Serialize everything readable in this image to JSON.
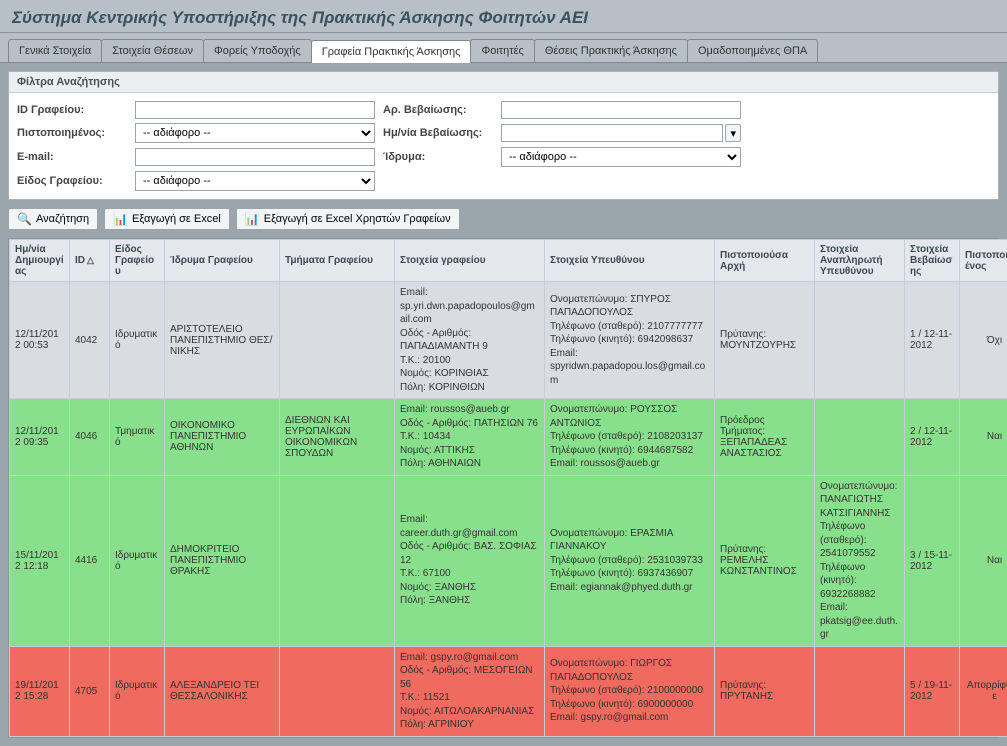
{
  "header": {
    "title": "Σύστημα Κεντρικής Υποστήριξης της Πρακτικής Άσκησης Φοιτητών ΑΕΙ"
  },
  "tabs": {
    "items": [
      {
        "label": "Γενικά Στοιχεία"
      },
      {
        "label": "Στοιχεία Θέσεων"
      },
      {
        "label": "Φορείς Υποδοχής"
      },
      {
        "label": "Γραφεία Πρακτικής Άσκησης",
        "active": true
      },
      {
        "label": "Φοιτητές"
      },
      {
        "label": "Θέσεις Πρακτικής Άσκησης"
      },
      {
        "label": "Ομαδοποιημένες ΘΠΑ"
      }
    ]
  },
  "filters": {
    "panel_title": "Φίλτρα Αναζήτησης",
    "id_label": "ID Γραφείου:",
    "id_value": "",
    "certno_label": "Αρ. Βεβαίωσης:",
    "certno_value": "",
    "certified_label": "Πιστοποιημένος:",
    "certified_value": "-- αδιάφορο --",
    "certdate_label": "Ημ/νία Βεβαίωσης:",
    "certdate_value": "",
    "email_label": "E-mail:",
    "email_value": "",
    "institution_label": "Ίδρυμα:",
    "institution_value": "-- αδιάφορο --",
    "kind_label": "Είδος Γραφείου:",
    "kind_value": "-- αδιάφορο --"
  },
  "actions": {
    "search": "Αναζήτηση",
    "export_excel": "Εξαγωγή σε Excel",
    "export_excel_users": "Εξαγωγή σε Excel Χρηστών Γραφείων"
  },
  "table": {
    "columns": [
      "Ημ/νία Δημιουργίας",
      "ID",
      "Είδος Γραφείου",
      "Ίδρυμα Γραφείου",
      "Τμήματα Γραφείου",
      "Στοιχεία γραφείου",
      "Στοιχεία Υπευθύνου",
      "Πιστοποιούσα Αρχή",
      "Στοιχεία Αναπληρωτή Υπευθύνου",
      "Στοιχεία Βεβαίωσης",
      "Πιστοποιημένος"
    ],
    "sort_col": 1,
    "rows": [
      {
        "status": "gray",
        "created": "12/11/2012 00:53",
        "id": "4042",
        "kind": "Ιδρυματικό",
        "institution": "ΑΡΙΣΤΟΤΕΛΕΙΟ ΠΑΝΕΠΙΣΤΗΜΙΟ ΘΕΣ/ΝΙΚΗΣ",
        "departments": "",
        "office": "Email: sp.yri.dwn.papadopoulos@gmail.com\nΟδός - Αριθμός: ΠΑΠΑΔΙΑΜΑΝΤΗ 9\nΤ.Κ.: 20100\nΝομός: ΚΟΡΙΝΘΙΑΣ\nΠόλη: ΚΟΡΙΝΘΙΩΝ",
        "head": "Ονοματεπώνυμο: ΣΠΥΡΟΣ ΠΑΠΑΔΟΠΟΥΛΟΣ\nΤηλέφωνο (σταθερό): 2107777777\nΤηλέφωνο (κινητό): 6942098637\nEmail: spyridwn.papadopou.los@gmail.com",
        "auth": "Πρύτανης: ΜΟΥΝΤΖΟΥΡΗΣ",
        "deputy": "",
        "cert": "1 / 12-11-2012",
        "certified": "Όχι"
      },
      {
        "status": "green",
        "created": "12/11/2012 09:35",
        "id": "4046",
        "kind": "Τμηματικό",
        "institution": "ΟΙΚΟΝΟΜΙΚΟ ΠΑΝΕΠΙΣΤΗΜΙΟ ΑΘΗΝΩΝ",
        "departments": "ΔΙΕΘΝΩΝ ΚΑΙ ΕΥΡΩΠΑΪΚΩΝ ΟΙΚΟΝΟΜΙΚΩΝ ΣΠΟΥΔΩΝ",
        "office": "Email: roussos@aueb.gr\nΟδός - Αριθμός: ΠΑΤΗΣΙΩΝ 76\nΤ.Κ.: 10434\nΝομός: ΑΤΤΙΚΗΣ\nΠόλη: ΑΘΗΝΑΙΩΝ",
        "head": "Ονοματεπώνυμο: ΡΟΥΣΣΟΣ ΑΝΤΩΝΙΟΣ\nΤηλέφωνο (σταθερό): 2108203137\nΤηλέφωνο (κινητό): 6944687582\nEmail: roussos@aueb.gr",
        "auth": "Πρόεδρος Τμήματος: ΞΕΠΑΠΑΔΕΑΣ ΑΝΑΣΤΑΣΙΟΣ",
        "deputy": "",
        "cert": "2 / 12-11-2012",
        "certified": "Ναι"
      },
      {
        "status": "green",
        "created": "15/11/2012 12:18",
        "id": "4416",
        "kind": "Ιδρυματικό",
        "institution": "ΔΗΜΟΚΡΙΤΕΙΟ ΠΑΝΕΠΙΣΤΗΜΙΟ ΘΡΑΚΗΣ",
        "departments": "",
        "office": "Email: career.duth.gr@gmail.com\nΟδός - Αριθμός: ΒΑΣ. ΣΟΦΙΑΣ 12\nΤ.Κ.: 67100\nΝομός: ΞΑΝΘΗΣ\nΠόλη: ΞΑΝΘΗΣ",
        "head": "Ονοματεπώνυμο: ΕΡΑΣΜΙΑ ΓΙΑΝΝΑΚΟΥ\nΤηλέφωνο (σταθερό): 2531039733\nΤηλέφωνο (κινητό): 6937436907\nEmail: egiannak@phyed.duth.gr",
        "auth": "Πρύτανης: ΡΕΜΕΛΗΣ ΚΩΝΣΤΑΝΤΙΝΟΣ",
        "deputy": "Ονοματεπώνυμο: ΠΑΝΑΓΙΩΤΗΣ ΚΑΤΣΙΓΙΑΝΝΗΣ\nΤηλέφωνο (σταθερό): 2541079552\nΤηλέφωνο (κινητό): 6932268882\nEmail: pkatsig@ee.duth.gr",
        "cert": "3 / 15-11-2012",
        "certified": "Ναι"
      },
      {
        "status": "red",
        "created": "19/11/2012 15:28",
        "id": "4705",
        "kind": "Ιδρυματικό",
        "institution": "ΑΛΕΞΑΝΔΡΕΙΟ ΤΕΙ ΘΕΣΣΑΛΟΝΙΚΗΣ",
        "departments": "",
        "office": "Email: gspy.ro@gmail.com\nΟδός - Αριθμός: ΜΕΣΟΓΕΙΩΝ 56\nΤ.Κ.: 11521\nΝομός: ΑΙΤΩΛΟΑΚΑΡΝΑΝΙΑΣ\nΠόλη: ΑΓΡΙΝΙΟΥ",
        "head": "Ονοματεπώνυμο: ΓΙΩΡΓΟΣ ΠΑΠΑΔΟΠΟΥΛΟΣ\nΤηλέφωνο (σταθερό): 2100000000\nΤηλέφωνο (κινητό): 6900000000\nEmail: gspy.ro@gmail.com",
        "auth": "Πρύτανης: ΠΡΥΤΑΝΗΣ",
        "deputy": "",
        "cert": "5 / 19-11-2012",
        "certified": "Απορρίφθηκε"
      }
    ]
  },
  "styling": {
    "row_status_colors": {
      "gray": "#d9dde1",
      "green": "#89e08c",
      "red": "#ef6a5f"
    },
    "header_bg": "#b6c0c6",
    "page_bg": "#9aa5ac",
    "grid_header_bg": "#e4e8ec",
    "border_color": "#c7ced3"
  }
}
